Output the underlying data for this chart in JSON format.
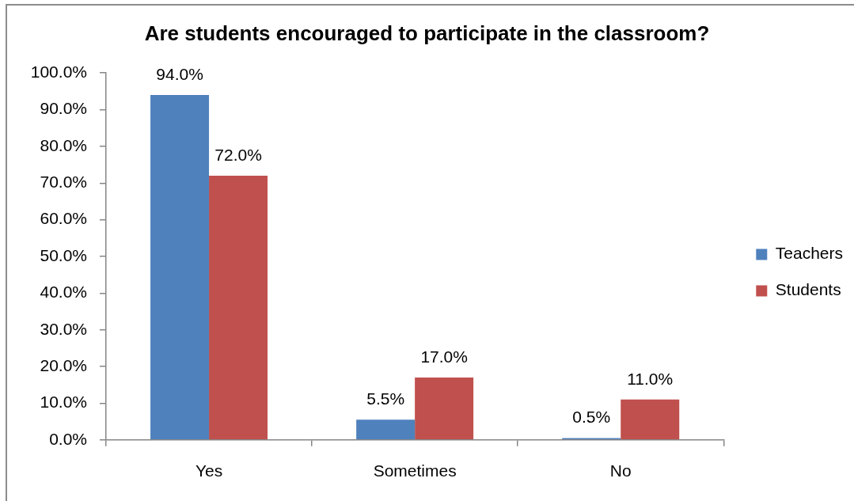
{
  "chart_data": {
    "type": "bar",
    "title": "Are students encouraged to participate in the classroom?",
    "categories": [
      "Yes",
      "Sometimes",
      "No"
    ],
    "series": [
      {
        "name": "Teachers",
        "color": "#4f81bd",
        "values": [
          94.0,
          5.5,
          0.5
        ],
        "value_labels": [
          "94.0%",
          "5.5%",
          "0.5%"
        ]
      },
      {
        "name": "Students",
        "color": "#c0504d",
        "values": [
          72.0,
          17.0,
          11.0
        ],
        "value_labels": [
          "72.0%",
          "17.0%",
          "11.0%"
        ]
      }
    ],
    "ylim": [
      0,
      100
    ],
    "yticks": [
      {
        "value": 0,
        "label": "0.0%"
      },
      {
        "value": 10,
        "label": "10.0%"
      },
      {
        "value": 20,
        "label": "20.0%"
      },
      {
        "value": 30,
        "label": "30.0%"
      },
      {
        "value": 40,
        "label": "40.0%"
      },
      {
        "value": 50,
        "label": "50.0%"
      },
      {
        "value": 60,
        "label": "60.0%"
      },
      {
        "value": 70,
        "label": "70.0%"
      },
      {
        "value": 80,
        "label": "80.0%"
      },
      {
        "value": 90,
        "label": "90.0%"
      },
      {
        "value": 100,
        "label": "100.0%"
      }
    ],
    "legend": "right"
  }
}
